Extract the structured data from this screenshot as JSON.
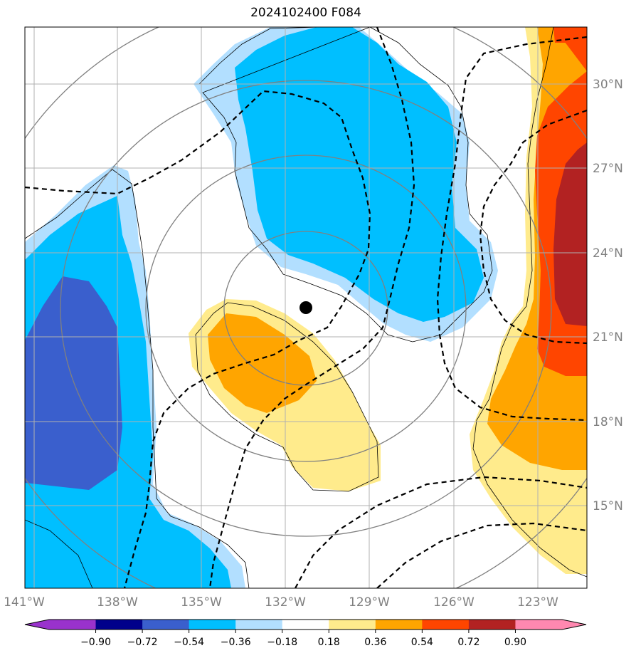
{
  "title": "2024102400 F084",
  "map": {
    "lon_ticks": [
      "141°W",
      "138°W",
      "135°W",
      "132°W",
      "129°W",
      "126°W",
      "123°W"
    ],
    "lat_ticks": [
      "30°N",
      "27°N",
      "24°N",
      "21°N",
      "18°N",
      "15°N"
    ],
    "extent": {
      "lon": [
        -141.3,
        -121.3
      ],
      "lat": [
        12.5,
        32.5
      ]
    },
    "storm_center": {
      "lon": -131.3,
      "lat": 22.0
    }
  },
  "colorbar": {
    "levels": [
      "−0.90",
      "−0.72",
      "−0.54",
      "−0.36",
      "−0.18",
      "0.18",
      "0.36",
      "0.54",
      "0.72",
      "0.90"
    ],
    "colors": [
      "#9932cc",
      "#00008b",
      "#3a5fcd",
      "#00bfff",
      "#b2dfff",
      "#ffffff",
      "#ffeb8c",
      "#ffa500",
      "#ff4500",
      "#b22222",
      "#ff88b0"
    ]
  },
  "colors": {
    "blue_light": "#b2dfff",
    "blue_mid": "#00bfff",
    "blue_dark": "#3a5fcd",
    "yellow": "#ffeb8c",
    "orange": "#ffa500",
    "red_orange": "#ff4500",
    "dark_red": "#b22222"
  }
}
